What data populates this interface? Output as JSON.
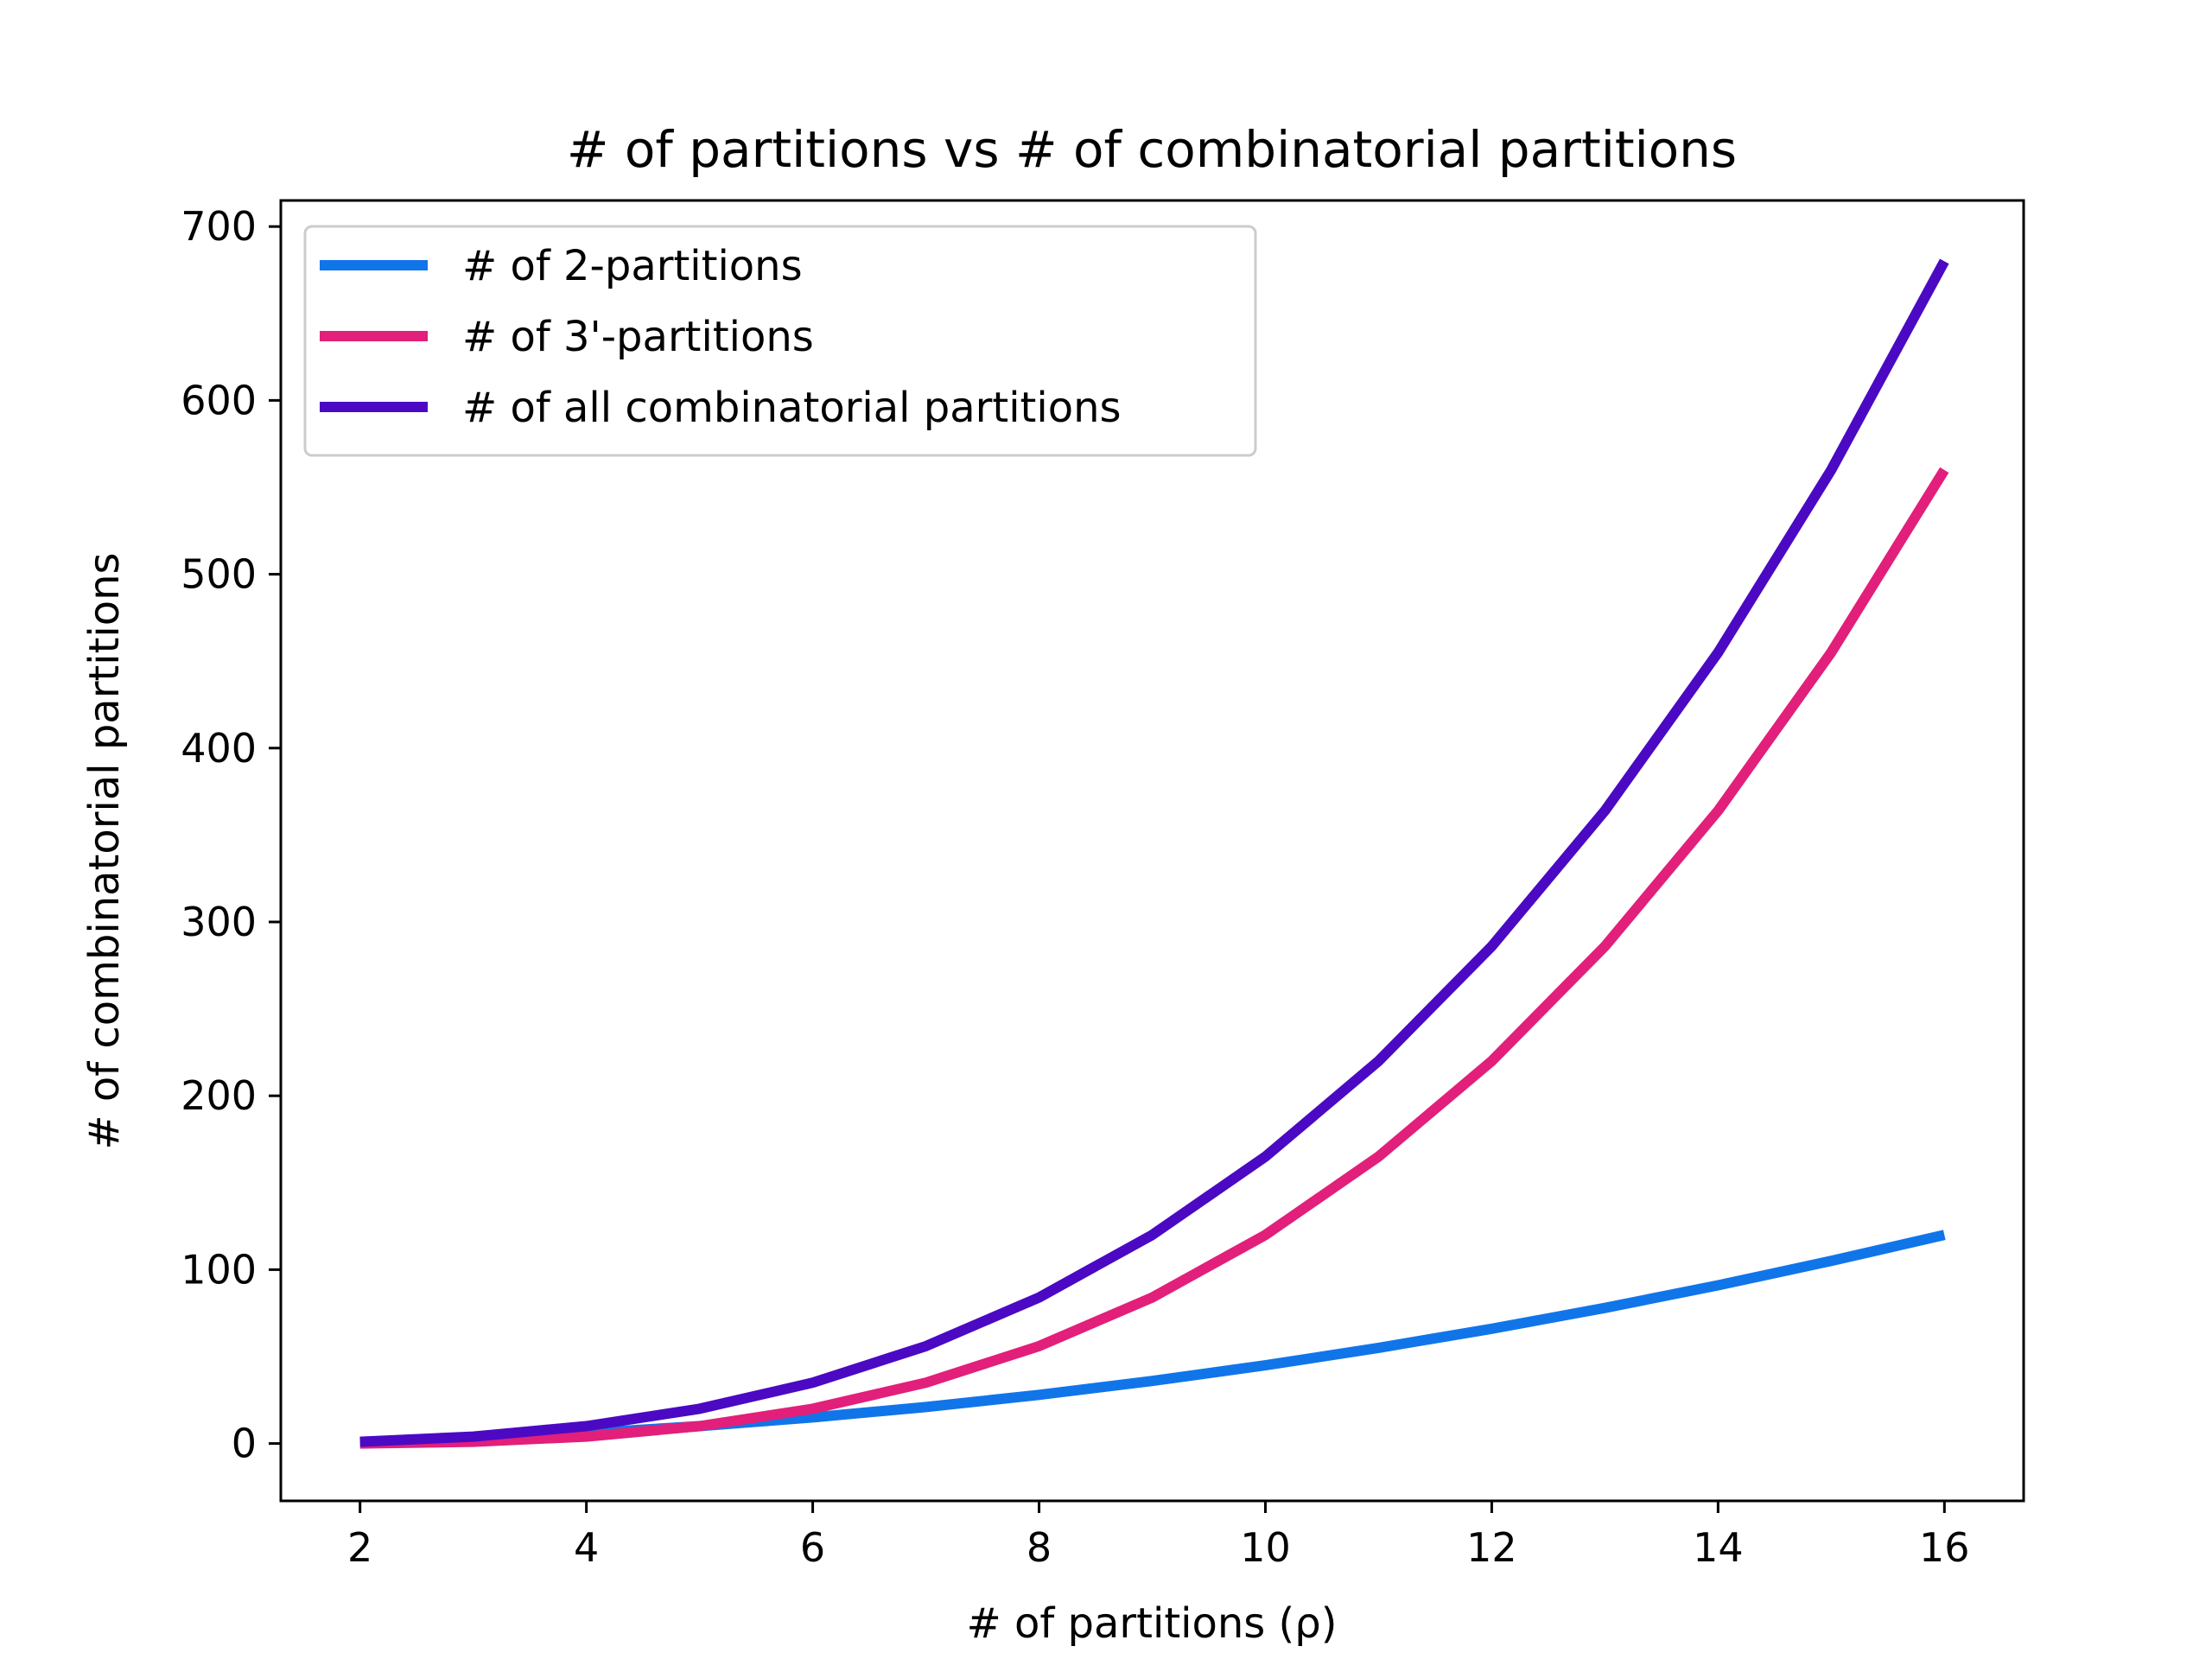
{
  "chart_data": {
    "type": "line",
    "title": "# of partitions vs # of combinatorial partitions",
    "xlabel": "# of partitions (ρ)",
    "ylabel": "# of combinatorial partitions",
    "xlim": [
      1.3,
      16.7
    ],
    "ylim": [
      -33,
      715
    ],
    "xticks": [
      2,
      4,
      6,
      8,
      10,
      12,
      14,
      16
    ],
    "yticks": [
      0,
      100,
      200,
      300,
      400,
      500,
      600,
      700
    ],
    "grid": false,
    "legend_position": "top-left",
    "x": [
      2,
      3,
      4,
      5,
      6,
      7,
      8,
      9,
      10,
      11,
      12,
      13,
      14,
      15,
      16
    ],
    "series": [
      {
        "name": "# of 2-partitions",
        "color": "#1175ea",
        "values": [
          1,
          3,
          6,
          10,
          15,
          21,
          28,
          36,
          45,
          55,
          66,
          78,
          91,
          105,
          120
        ]
      },
      {
        "name": "# of 3'-partitions",
        "color": "#e21f7a",
        "values": [
          0,
          1,
          4,
          10,
          20,
          35,
          56,
          84,
          120,
          165,
          220,
          286,
          364,
          455,
          560
        ]
      },
      {
        "name": "# of all combinatorial partitions",
        "color": "#4b09c4",
        "values": [
          1,
          4,
          10,
          20,
          35,
          56,
          84,
          120,
          165,
          220,
          286,
          364,
          455,
          560,
          680
        ]
      }
    ]
  }
}
